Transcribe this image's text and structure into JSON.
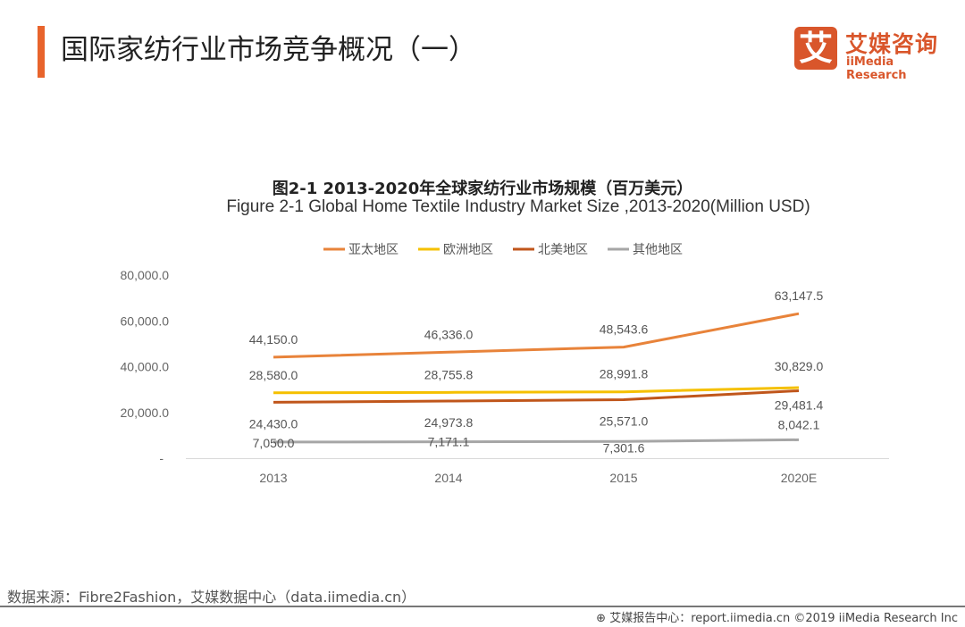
{
  "header": {
    "title": "国际家纺行业市场竞争概况（一）"
  },
  "logo": {
    "mark": "艾",
    "cn": "艾媒咨询",
    "en": "iiMedia Research"
  },
  "chart_data": {
    "type": "line",
    "title": "图2-1 2013-2020年全球家纺行业市场规模（百万美元）",
    "subtitle": "Figure 2-1 Global Home Textile Industry Market Size ,2013-2020(Million USD)",
    "categories": [
      "2013",
      "2014",
      "2015",
      "2020E"
    ],
    "yticks": [
      "-",
      "20,000.0",
      "40,000.0",
      "60,000.0",
      "80,000.0"
    ],
    "ylim": [
      0,
      80000
    ],
    "legend_position": "top",
    "series": [
      {
        "name": "亚太地区",
        "color": "#e8833a",
        "values": [
          44150.0,
          46336.0,
          48543.6,
          63147.5
        ],
        "labels": [
          "44,150.0",
          "46,336.0",
          "48,543.6",
          "63,147.5"
        ]
      },
      {
        "name": "欧洲地区",
        "color": "#f5c000",
        "values": [
          28580.0,
          28755.8,
          28991.8,
          30829.0
        ],
        "labels": [
          "28,580.0",
          "28,755.8",
          "28,991.8",
          "30,829.0"
        ]
      },
      {
        "name": "北美地区",
        "color": "#c0561b",
        "values": [
          24430.0,
          24973.8,
          25571.0,
          29481.4
        ],
        "labels": [
          "24,430.0",
          "24,973.8",
          "25,571.0",
          "29,481.4"
        ]
      },
      {
        "name": "其他地区",
        "color": "#a6a6a6",
        "values": [
          7050.0,
          7171.1,
          7301.6,
          8042.1
        ],
        "labels": [
          "7,050.0",
          "7,171.1",
          "7,301.6",
          "8,042.1"
        ]
      }
    ]
  },
  "footer": {
    "source": "数据来源：Fibre2Fashion，艾媒数据中心（data.iimedia.cn）",
    "copyright": "艾媒报告中心：report.iimedia.cn  ©2019  iiMedia Research Inc"
  }
}
